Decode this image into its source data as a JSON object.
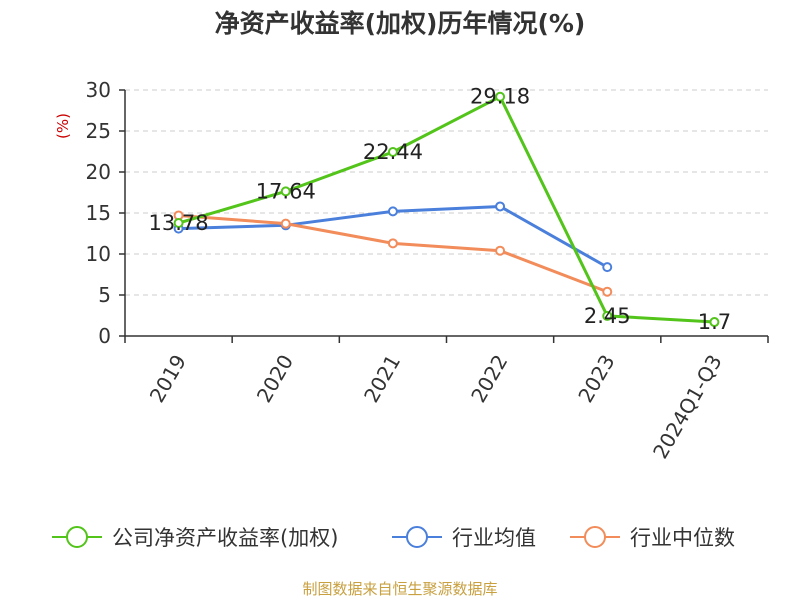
{
  "title": "净资产收益率(加权)历年情况(%)",
  "source": "制图数据来自恒生聚源数据库",
  "chart_data": {
    "type": "line",
    "title": "净资产收益率(加权)历年情况(%)",
    "ylabel": "(%)",
    "xlabel": "",
    "categories": [
      "2019",
      "2020",
      "2021",
      "2022",
      "2023",
      "2024Q1-Q3"
    ],
    "ylim": [
      0,
      30
    ],
    "yticks": [
      0,
      5,
      10,
      15,
      20,
      25,
      30
    ],
    "grid": true,
    "legend_position": "bottom",
    "series": [
      {
        "name": "公司净资产收益率(加权)",
        "color": "#52c41a",
        "values": [
          13.78,
          17.64,
          22.44,
          29.18,
          2.45,
          1.7
        ],
        "labels": [
          "13.78",
          "17.64",
          "22.44",
          "29.18",
          "2.45",
          "1.7"
        ]
      },
      {
        "name": "行业均值",
        "color": "#4a7fdc",
        "values": [
          13.1,
          13.5,
          15.2,
          15.8,
          8.4,
          null
        ]
      },
      {
        "name": "行业中位数",
        "color": "#f28c5a",
        "values": [
          14.7,
          13.7,
          11.3,
          10.4,
          5.4,
          null
        ]
      }
    ]
  }
}
